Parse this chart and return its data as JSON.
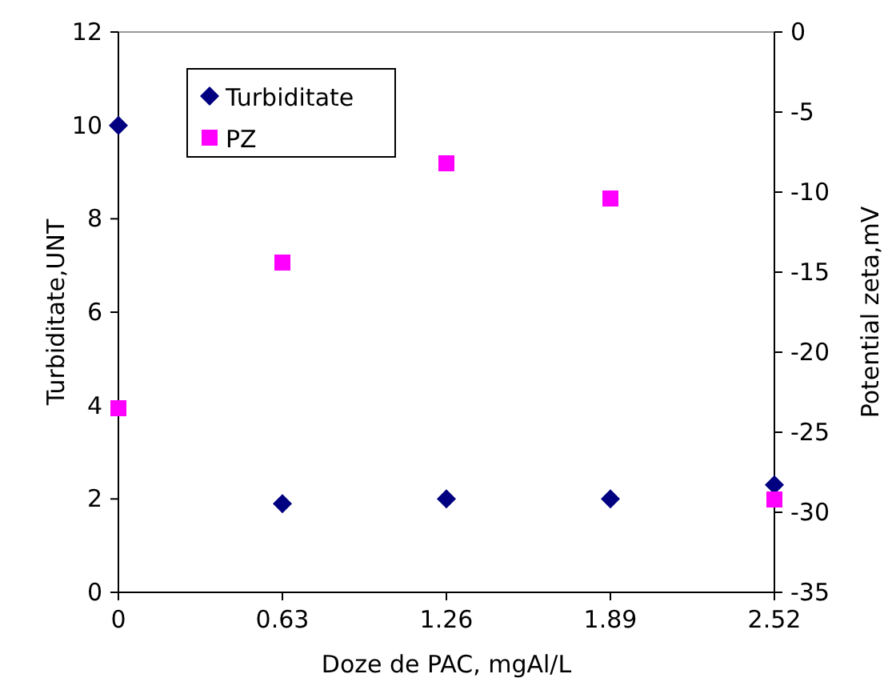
{
  "chart_data": {
    "type": "scatter",
    "xlabel": "Doze de PAC, mgAl/L",
    "ylabel": "Turbiditate,UNT",
    "y2label": "Potential zeta,mV",
    "x": [
      0,
      0.63,
      1.26,
      1.89,
      2.52
    ],
    "series": [
      {
        "name": "Turbiditate",
        "color": "#000080",
        "marker": "diamond",
        "values": [
          10,
          1.9,
          2.0,
          2.0,
          2.3
        ]
      },
      {
        "name": "PZ",
        "color": "#ff00ff",
        "marker": "square",
        "axis": "y2",
        "values": [
          -23.5,
          -14.4,
          -8.2,
          -10.4,
          -29.2
        ]
      }
    ],
    "xlim": [
      0,
      2.52
    ],
    "xticks": [
      0,
      0.63,
      1.26,
      1.89,
      2.52
    ],
    "ylim": [
      0,
      12
    ],
    "yticks": [
      0,
      2,
      4,
      6,
      8,
      10,
      12
    ],
    "y2lim": [
      -35,
      0
    ],
    "y2ticks": [
      -35,
      -30,
      -25,
      -20,
      -15,
      -10,
      -5,
      0
    ],
    "grid": false,
    "legend": "top left"
  }
}
